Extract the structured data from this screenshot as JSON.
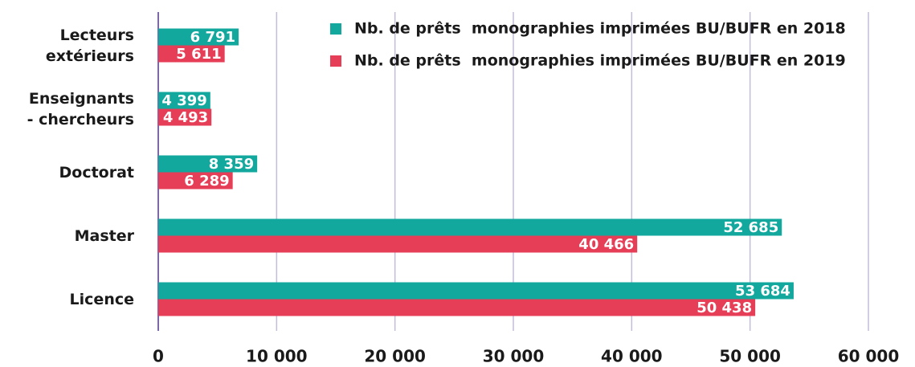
{
  "chart_data": {
    "type": "bar",
    "orientation": "horizontal",
    "categories": [
      "Lecteurs\nextérieurs",
      "Enseignants\n- chercheurs",
      "Doctorat",
      "Master",
      "Licence"
    ],
    "series": [
      {
        "name": "Nb. de prêts  monographies imprimées BU/BUFR en 2018",
        "color": "#13a89e",
        "values": [
          6791,
          4399,
          8359,
          52685,
          53684
        ],
        "value_labels": [
          "6 791",
          "4 399",
          "8 359",
          "52 685",
          "53 684"
        ]
      },
      {
        "name": "Nb. de prêts  monographies imprimées BU/BUFR en 2019",
        "color": "#e63e57",
        "values": [
          5611,
          4493,
          6289,
          40466,
          50438
        ],
        "value_labels": [
          "5 611",
          "4 493",
          "6 289",
          "40 466",
          "50 438"
        ]
      }
    ],
    "xlim": [
      0,
      60000
    ],
    "xticks": [
      0,
      {
        "value": 10000,
        "label": "10 000"
      },
      {
        "value": 20000,
        "label": "20 000"
      },
      {
        "value": 30000,
        "label": "30 000"
      },
      {
        "value": 40000,
        "label": "40 000"
      },
      {
        "value": 50000,
        "label": "50 000"
      },
      {
        "value": 60000,
        "label": "60 000"
      }
    ],
    "grid": true,
    "legend": "top-right"
  }
}
